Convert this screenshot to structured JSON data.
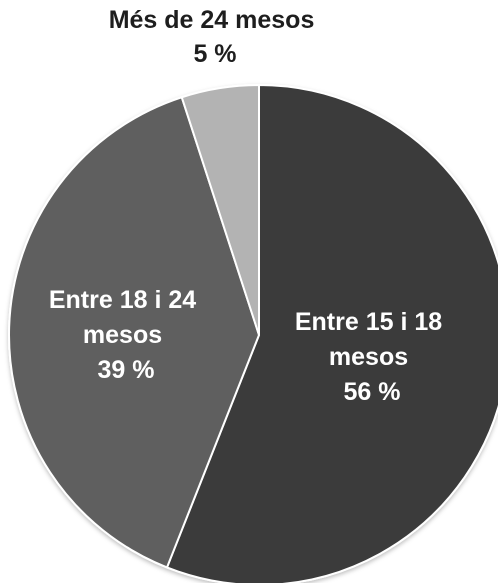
{
  "chart_data": {
    "type": "pie",
    "title": "",
    "slices": [
      {
        "label_lines": [
          "Entre 15 i 18",
          "mesos"
        ],
        "value": 56,
        "value_label": "56 %",
        "color": "#3b3b3b",
        "label_color": "#ffffff"
      },
      {
        "label_lines": [
          "Entre 18 i 24",
          "mesos"
        ],
        "value": 39,
        "value_label": "39 %",
        "color": "#5f5f5f",
        "label_color": "#ffffff"
      },
      {
        "label_lines": [
          "Més de 24 mesos"
        ],
        "value": 5,
        "value_label": "5 %",
        "color": "#b3b3b3",
        "label_color": "#1e1e1e"
      }
    ],
    "start": "12 o'clock",
    "direction": "clockwise",
    "legend": "none",
    "data_labels": "category and percent"
  }
}
